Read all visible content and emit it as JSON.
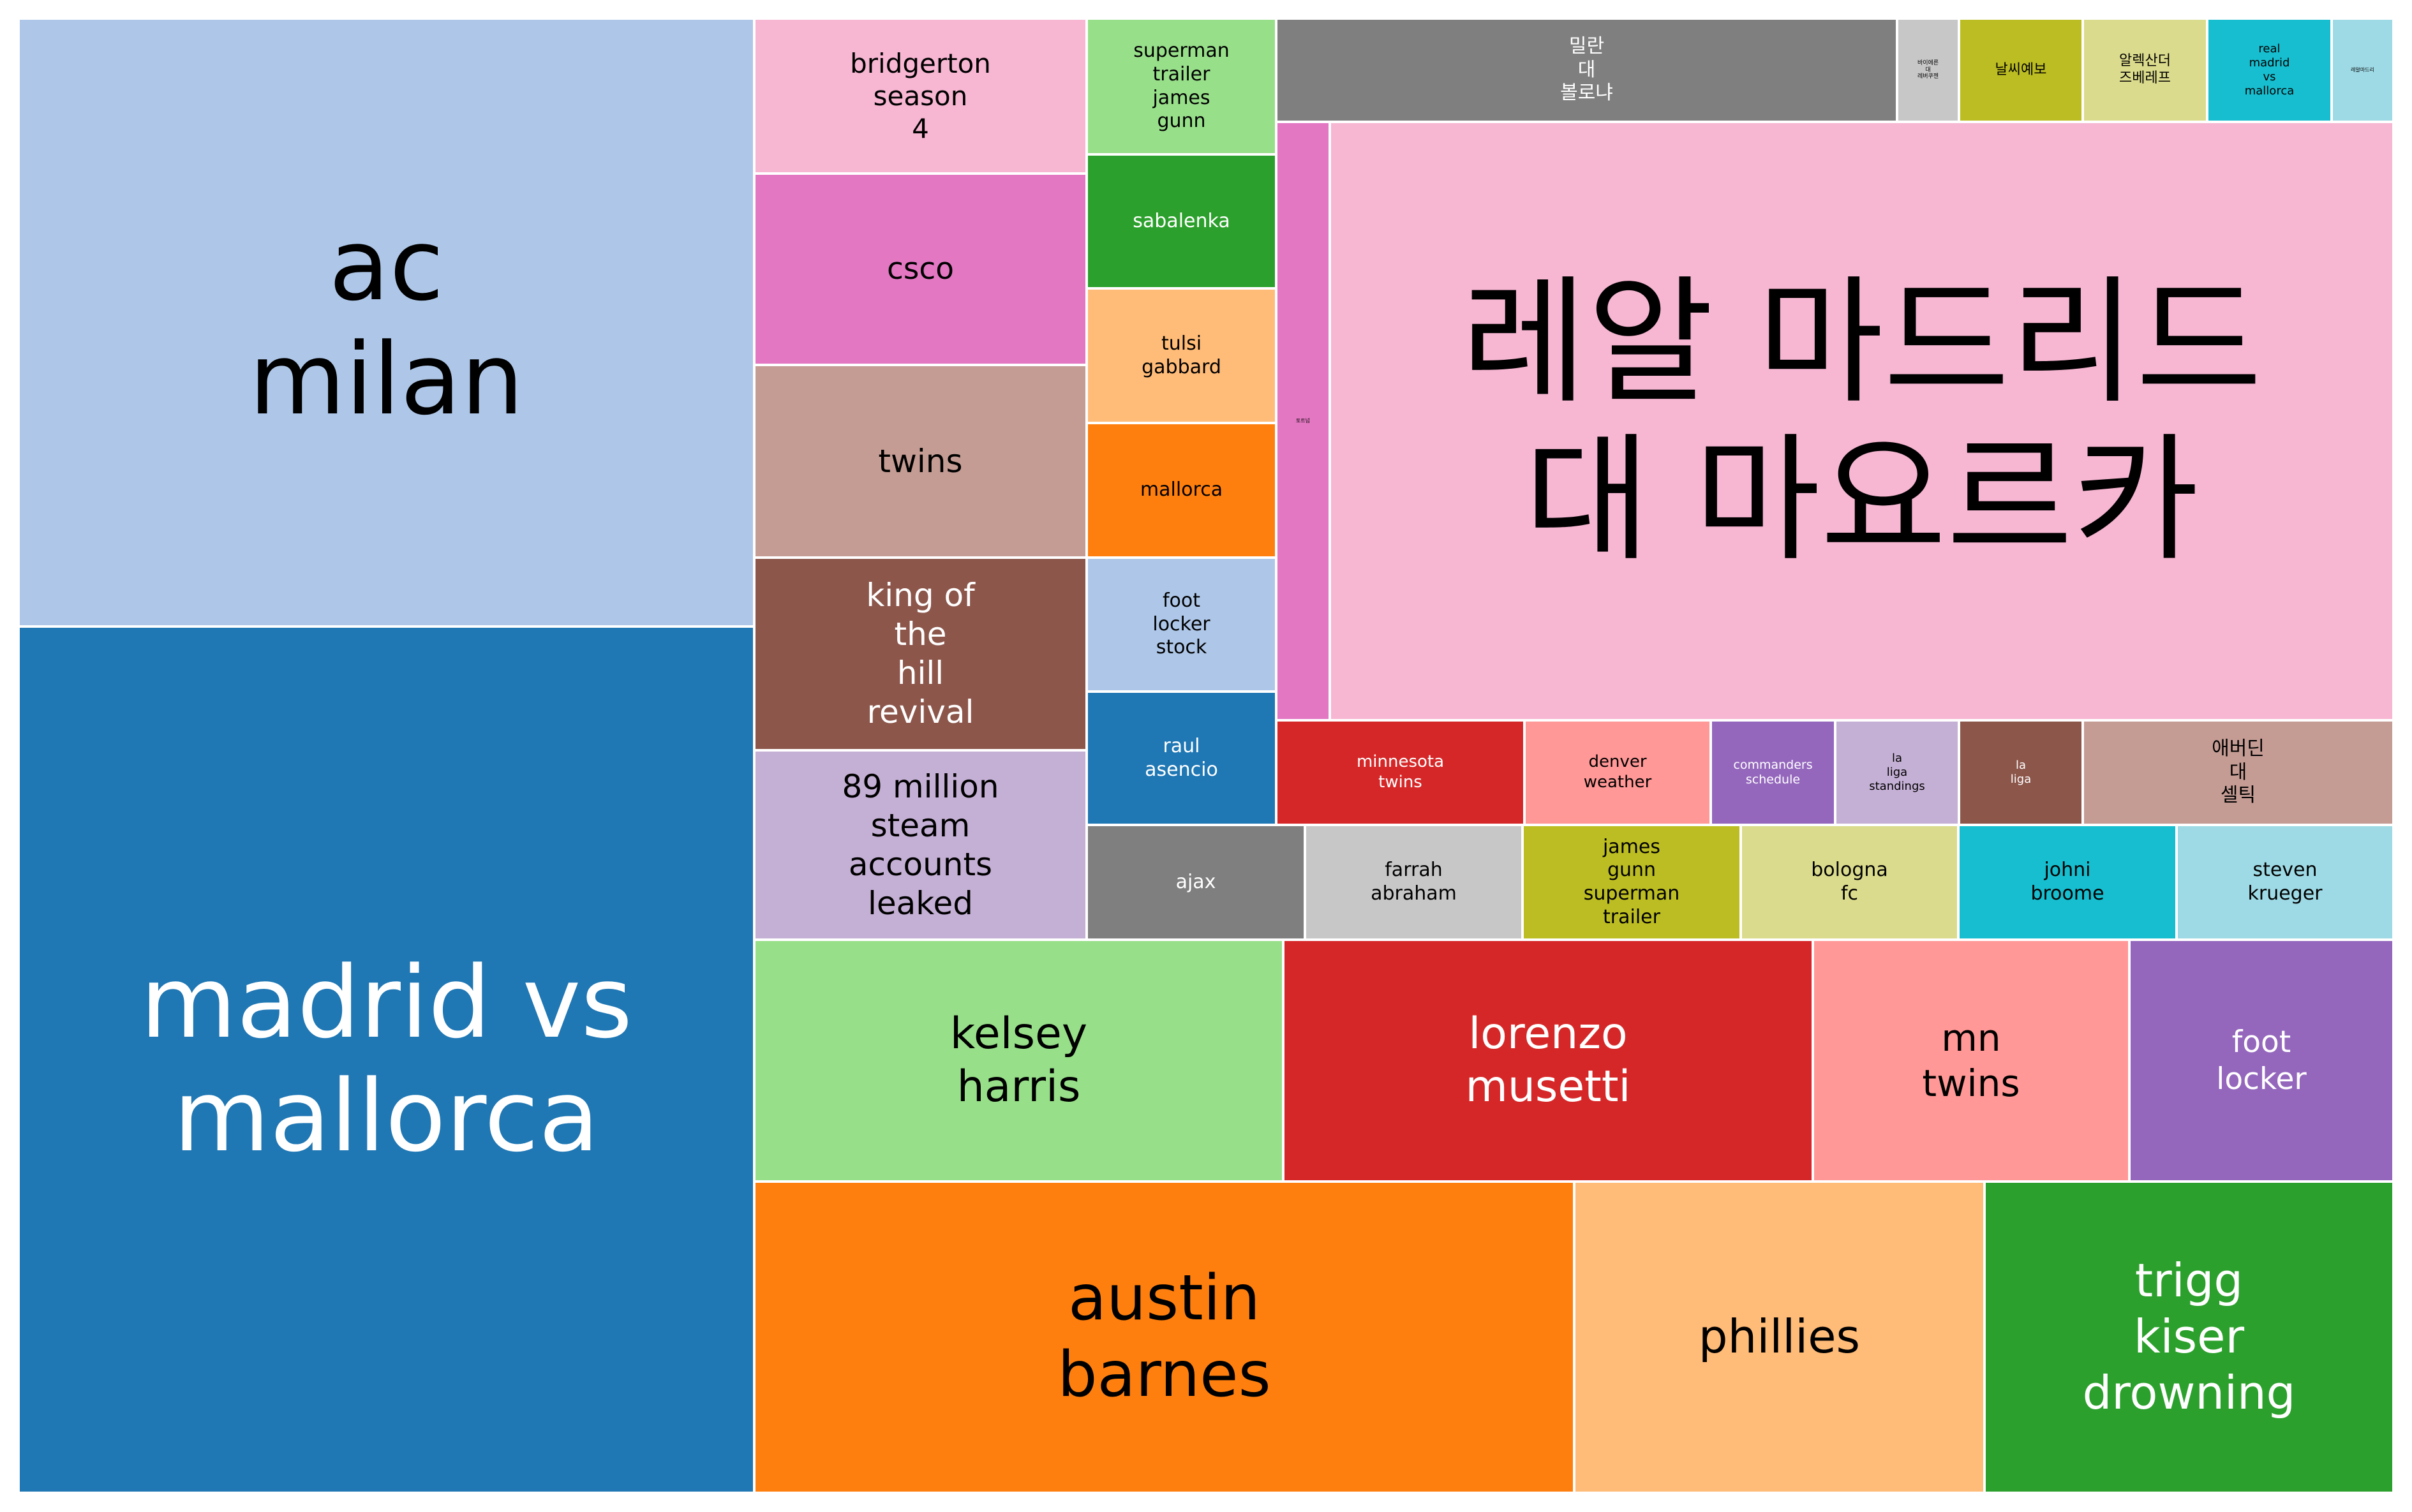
{
  "chart_data": {
    "type": "treemap",
    "title": "",
    "tiles": [
      {
        "label": "ac\nmilan",
        "color": "#aec7e8",
        "text_color": "#000000"
      },
      {
        "label": "madrid vs\nmallorca",
        "color": "#1f77b4",
        "text_color": "#ffffff"
      },
      {
        "label": "bridgerton\nseason\n4",
        "color": "#f7b6d2",
        "text_color": "#000000"
      },
      {
        "label": "csco",
        "color": "#e377c2",
        "text_color": "#000000"
      },
      {
        "label": "twins",
        "color": "#c49c94",
        "text_color": "#000000"
      },
      {
        "label": "king of\nthe\nhill\nrevival",
        "color": "#8c564b",
        "text_color": "#ffffff"
      },
      {
        "label": "89 million\nsteam\naccounts\nleaked",
        "color": "#c5b0d5",
        "text_color": "#000000"
      },
      {
        "label": "superman\ntrailer\njames\ngunn",
        "color": "#98df8a",
        "text_color": "#000000"
      },
      {
        "label": "sabalenka",
        "color": "#2ca02c",
        "text_color": "#ffffff"
      },
      {
        "label": "tulsi\ngabbard",
        "color": "#ffbb78",
        "text_color": "#000000"
      },
      {
        "label": "mallorca",
        "color": "#ff7f0e",
        "text_color": "#000000"
      },
      {
        "label": "foot\nlocker\nstock",
        "color": "#aec7e8",
        "text_color": "#000000"
      },
      {
        "label": "raul\nasencio",
        "color": "#1f77b4",
        "text_color": "#ffffff"
      },
      {
        "label": "밀란\n대\n볼로냐",
        "color": "#7f7f7f",
        "text_color": "#ffffff"
      },
      {
        "label": "바이에른\n대\n레버쿠젠",
        "color": "#c7c7c7",
        "text_color": "#000000"
      },
      {
        "label": "날씨예보",
        "color": "#bcbd22",
        "text_color": "#000000"
      },
      {
        "label": "알렉산더\n즈베레프",
        "color": "#dbdb8d",
        "text_color": "#000000"
      },
      {
        "label": "real\nmadrid\nvs\nmallorca",
        "color": "#17becf",
        "text_color": "#000000"
      },
      {
        "label": "레알마드리",
        "color": "#9edae5",
        "text_color": "#000000"
      },
      {
        "label": "토트넘",
        "color": "#e377c2",
        "text_color": "#000000"
      },
      {
        "label": "레알 마드리드\n대 마요르카",
        "color": "#f7b6d2",
        "text_color": "#000000"
      },
      {
        "label": "minnesota\ntwins",
        "color": "#d62728",
        "text_color": "#ffffff"
      },
      {
        "label": "denver\nweather",
        "color": "#ff9896",
        "text_color": "#000000"
      },
      {
        "label": "commanders\nschedule",
        "color": "#9467bd",
        "text_color": "#ffffff"
      },
      {
        "label": "la\nliga\nstandings",
        "color": "#c5b0d5",
        "text_color": "#000000"
      },
      {
        "label": "la\nliga",
        "color": "#8c564b",
        "text_color": "#ffffff"
      },
      {
        "label": "애버딘\n대\n셀틱",
        "color": "#c49c94",
        "text_color": "#000000"
      },
      {
        "label": "ajax",
        "color": "#7f7f7f",
        "text_color": "#ffffff"
      },
      {
        "label": "farrah\nabraham",
        "color": "#c7c7c7",
        "text_color": "#000000"
      },
      {
        "label": "james\ngunn\nsuperman\ntrailer",
        "color": "#bcbd22",
        "text_color": "#000000"
      },
      {
        "label": "bologna\nfc",
        "color": "#dbdb8d",
        "text_color": "#000000"
      },
      {
        "label": "johni\nbroome",
        "color": "#17becf",
        "text_color": "#000000"
      },
      {
        "label": "steven\nkrueger",
        "color": "#9edae5",
        "text_color": "#000000"
      },
      {
        "label": "kelsey\nharris",
        "color": "#98df8a",
        "text_color": "#000000"
      },
      {
        "label": "lorenzo\nmusetti",
        "color": "#d62728",
        "text_color": "#ffffff"
      },
      {
        "label": "mn\ntwins",
        "color": "#ff9896",
        "text_color": "#000000"
      },
      {
        "label": "foot\nlocker",
        "color": "#9467bd",
        "text_color": "#ffffff"
      },
      {
        "label": "austin\nbarnes",
        "color": "#ff7f0e",
        "text_color": "#000000"
      },
      {
        "label": "phillies",
        "color": "#ffbb78",
        "text_color": "#000000"
      },
      {
        "label": "trigg\nkiser\ndrowning",
        "color": "#2ca02c",
        "text_color": "#ffffff"
      }
    ]
  }
}
